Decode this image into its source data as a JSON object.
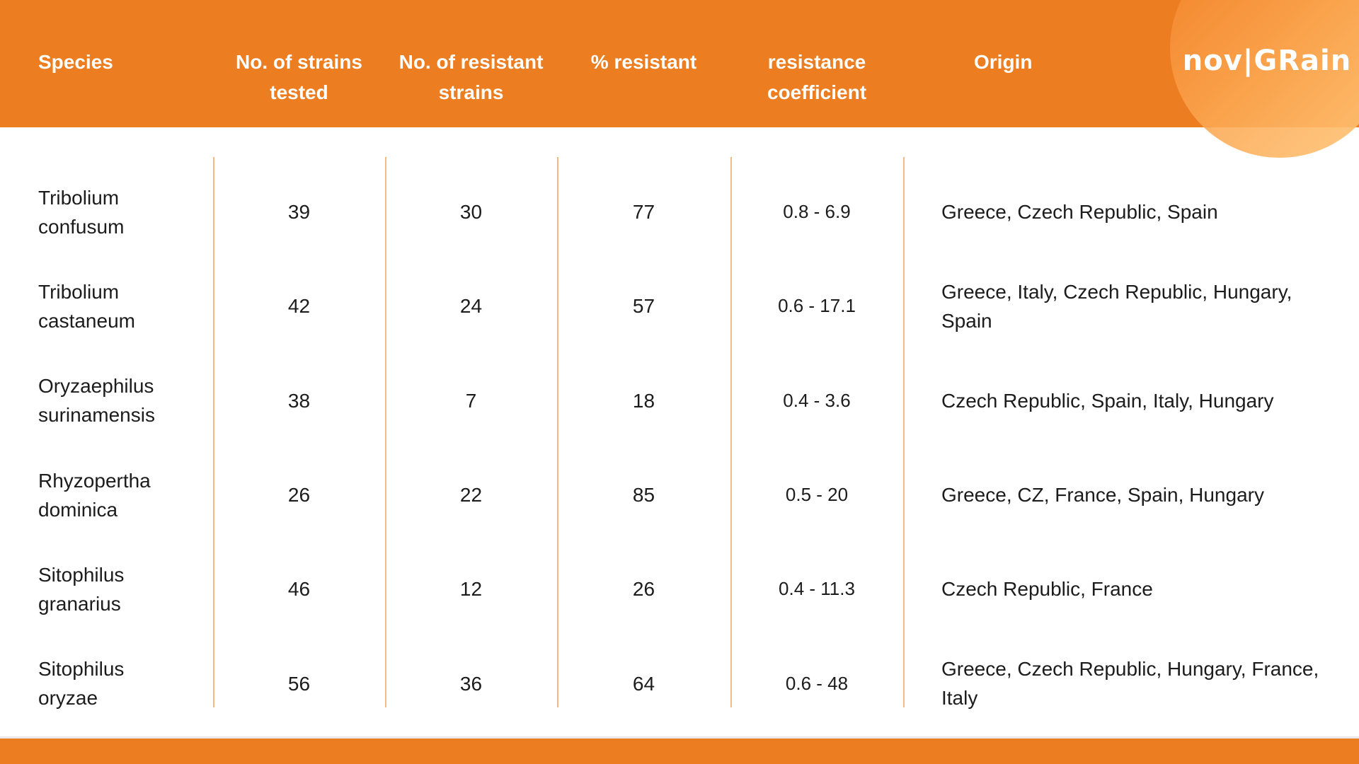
{
  "brand": {
    "logo_text": "nov|GRain"
  },
  "theme": {
    "header_orange": "#ED7D21",
    "footer_orange": "#ED7D21",
    "divider_orange": "#F5BA84",
    "text_dark": "#1C1C1C",
    "text_on_orange": "#FFFFFF"
  },
  "chart_data": {
    "type": "table",
    "columns": [
      "Species",
      "No. of strains tested",
      "No. of resistant strains",
      "% resistant",
      "resistance coefficient",
      "Origin"
    ],
    "rows": [
      [
        "Tribolium confusum",
        "39",
        "30",
        "77",
        "0.8 - 6.9",
        "Greece, Czech Republic, Spain"
      ],
      [
        "Tribolium castaneum",
        "42",
        "24",
        "57",
        "0.6 - 17.1",
        "Greece, Italy, Czech Republic, Hungary, Spain"
      ],
      [
        "Oryzaephilus surinamensis",
        "38",
        "7",
        "18",
        "0.4 - 3.6",
        "Czech Republic, Spain, Italy, Hungary"
      ],
      [
        "Rhyzopertha dominica",
        "26",
        "22",
        "85",
        "0.5 - 20",
        "Greece, CZ, France, Spain, Hungary"
      ],
      [
        "Sitophilus granarius",
        "46",
        "12",
        "26",
        "0.4 - 11.3",
        "Czech Republic, France"
      ],
      [
        "Sitophilus oryzae",
        "56",
        "36",
        "64",
        "0.6 - 48",
        "Greece, Czech Republic, Hungary, France, Italy"
      ]
    ]
  }
}
